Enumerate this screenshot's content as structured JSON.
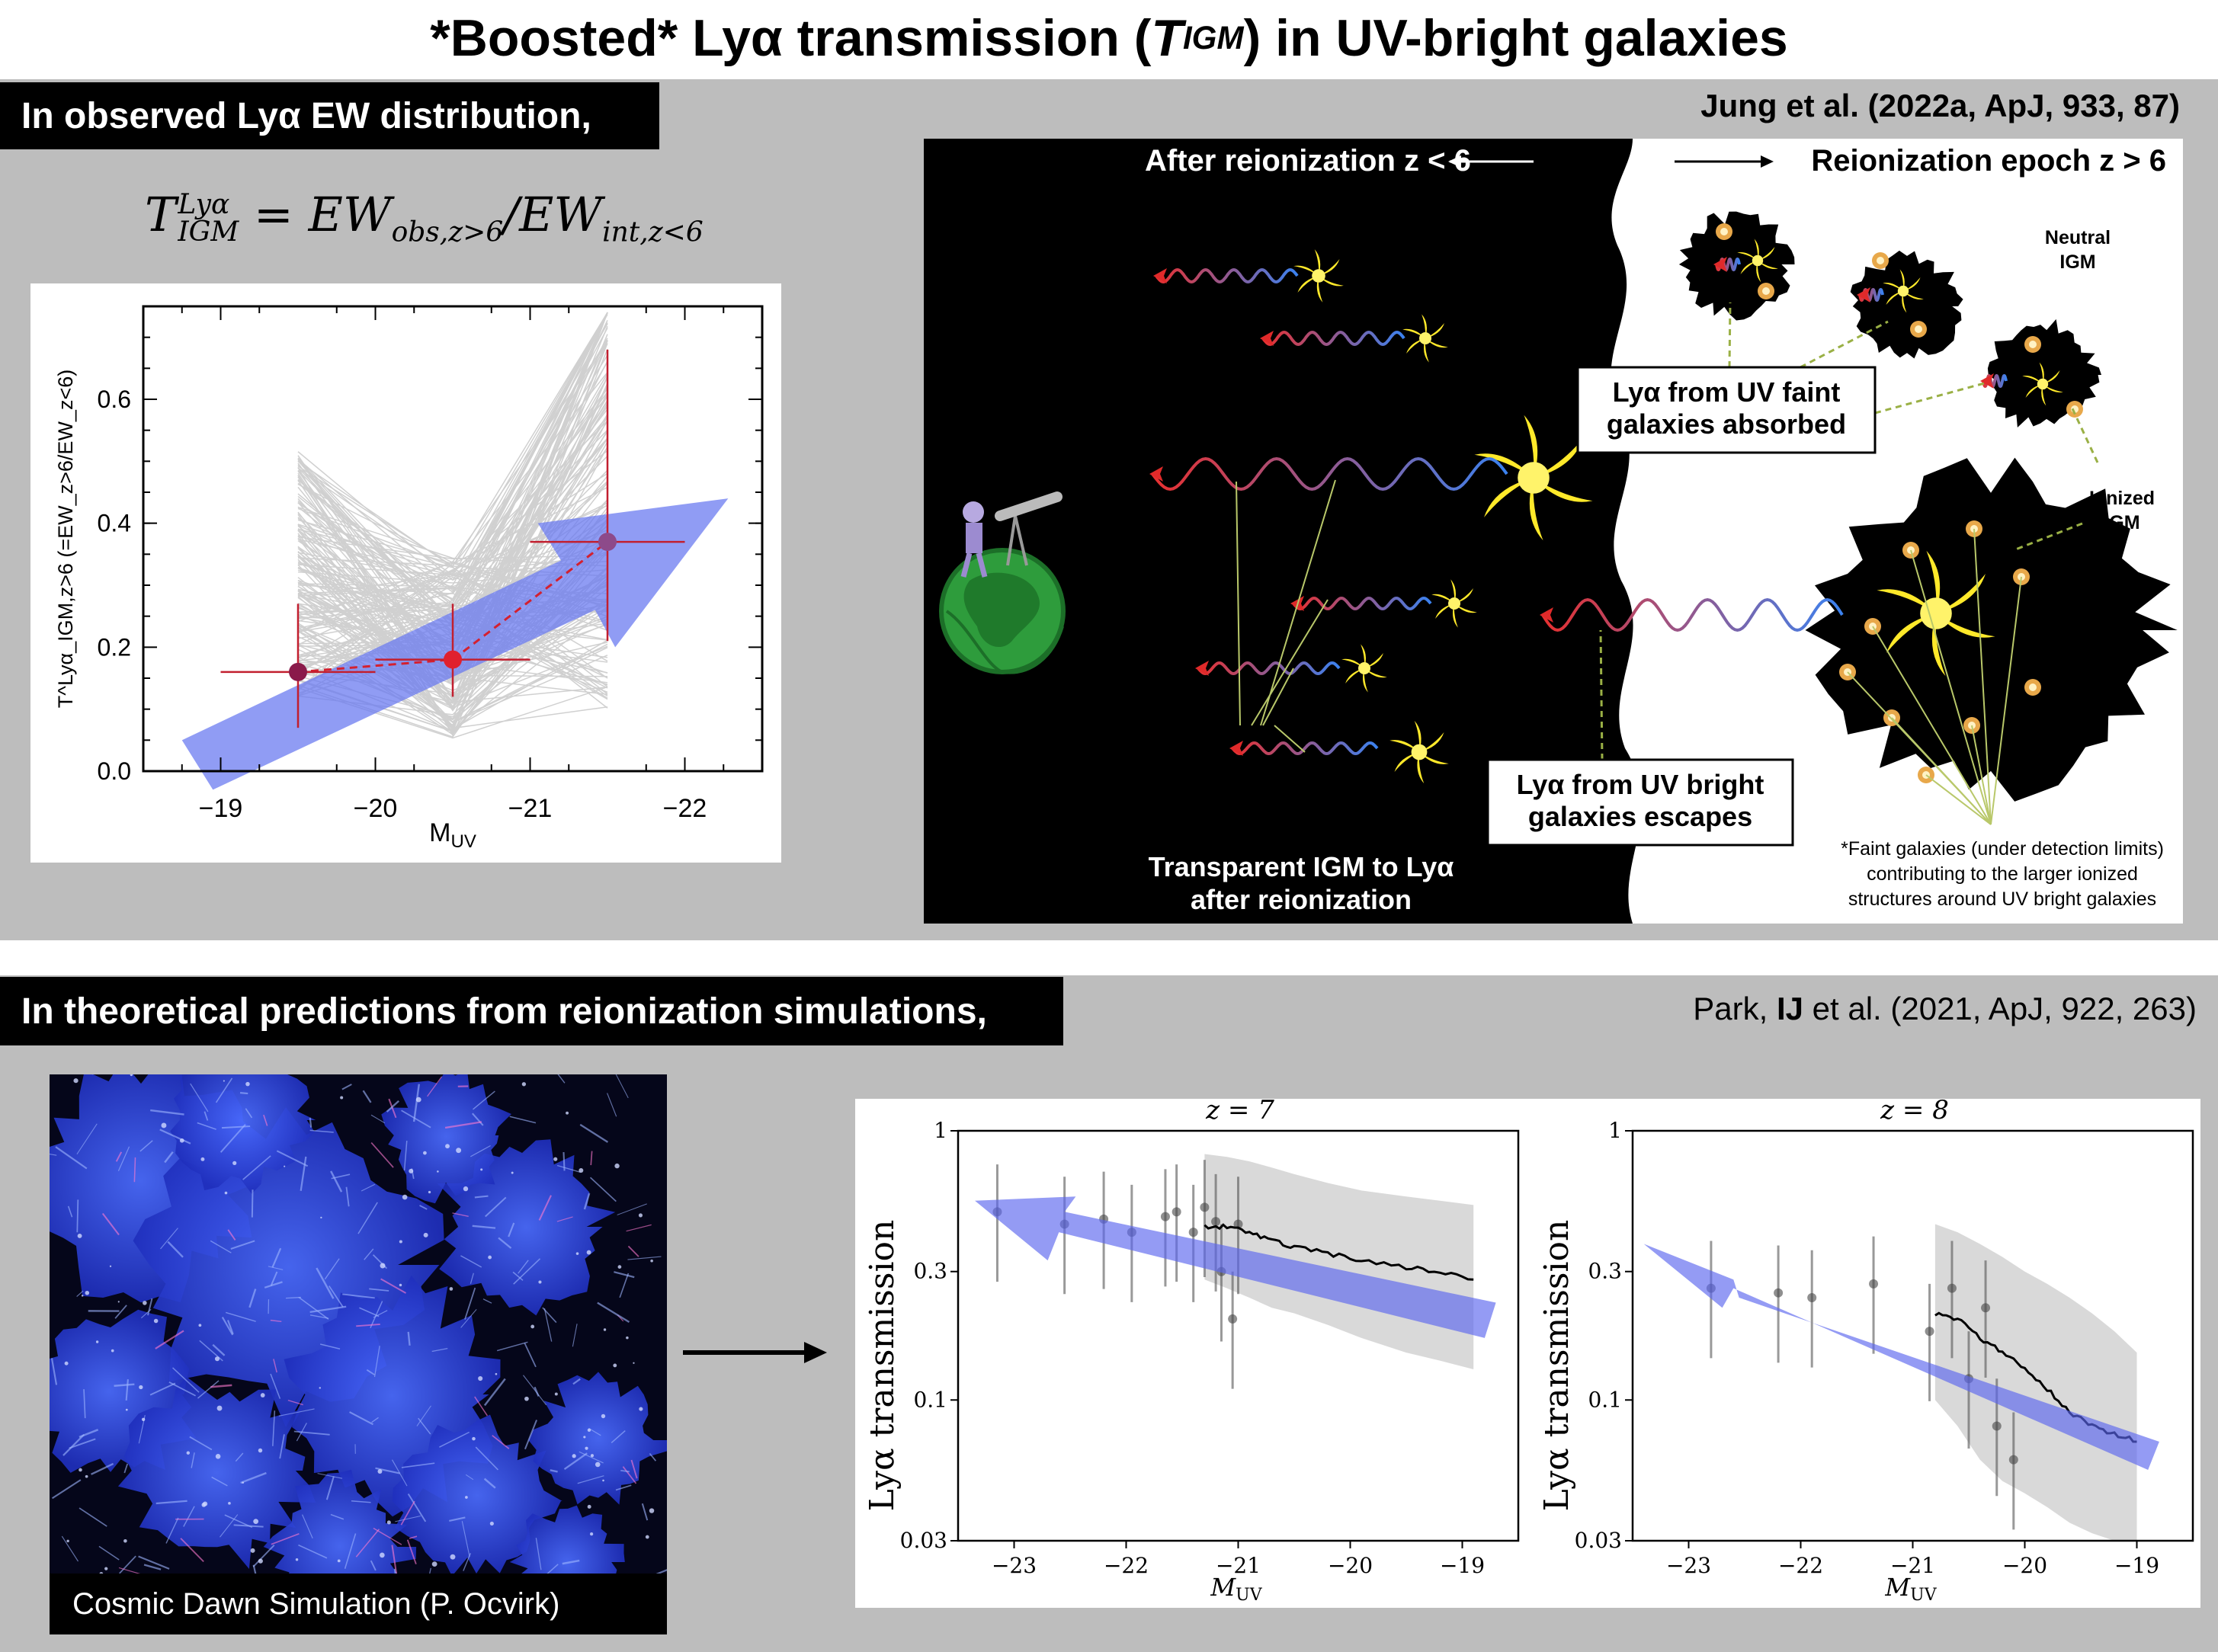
{
  "title": {
    "pre": "*Boosted* Lyα transmission (",
    "t": "T",
    "sub": "IGM",
    "post": ") in UV-bright galaxies"
  },
  "top_panel": {
    "tag": "In observed Lyα EW distribution,",
    "citation": "Jung et al. (2022a, ApJ, 933, 87)",
    "equation": {
      "T": "T",
      "sup": "Lyα",
      "sub": "IGM",
      "rhs1": " = EW",
      "sub1": "obs,z>6",
      "rhs2": "/EW",
      "sub2": "int,z<6"
    },
    "plot": {
      "xlabel_main": "M",
      "xlabel_sub": "UV",
      "ylabel": "T^Lyα_IGM,z>6 (=EW_z>6/EW_z<6)",
      "xticks": [
        "−19",
        "−20",
        "−21",
        "−22"
      ],
      "yticks": [
        "0.0",
        "0.2",
        "0.4",
        "0.6"
      ]
    },
    "cartoon": {
      "after_label": "After reionization z < 6",
      "epoch_label": "Reionization epoch z > 6",
      "neutral_label": [
        "Neutral",
        "IGM"
      ],
      "ionized_label": [
        "Ionized",
        "IGM"
      ],
      "faint_box": [
        "Lyα from UV faint",
        "galaxies absorbed"
      ],
      "bright_box": [
        "Lyα from UV bright",
        "galaxies escapes"
      ],
      "transparent_label": [
        "Transparent IGM to Lyα",
        "after reionization"
      ],
      "faint_note": [
        "*Faint galaxies (under detection limits)",
        "contributing to the larger ionized",
        "structures around UV bright galaxies"
      ]
    }
  },
  "bottom_panel": {
    "tag": "In theoretical predictions from reionization simulations,",
    "citation": {
      "pre": "Park, ",
      "bold": "IJ",
      "post": " et al. (2021, ApJ, 922, 263)"
    },
    "sim_caption": "Cosmic Dawn Simulation (P. Ocvirk)",
    "plot_left": {
      "title": "z = 7"
    },
    "plot_right": {
      "title": "z = 8"
    },
    "ylabel": "Lyα transmission",
    "xlabel_main": "M",
    "xlabel_sub": "UV",
    "xticks": [
      "−23",
      "−22",
      "−21",
      "−20",
      "−19"
    ],
    "yticks": [
      "0.03",
      "0.1",
      "0.3",
      "1"
    ]
  },
  "chart_data": [
    {
      "type": "scatter",
      "x": [
        -19.5,
        -20.5,
        -21.5
      ],
      "y": [
        0.16,
        0.18,
        0.37
      ],
      "y_err_low": [
        0.09,
        0.06,
        0.16
      ],
      "y_err_high": [
        0.11,
        0.09,
        0.31
      ],
      "x_err": [
        0.5,
        0.5,
        0.5
      ],
      "xlim": [
        -18.5,
        -22.5
      ],
      "ylim": [
        0.0,
        0.75
      ]
    },
    {
      "type": "line",
      "panel": "z = 7",
      "x": [
        -21.3,
        -21.1,
        -20.9,
        -20.7,
        -20.5,
        -20.2,
        -19.9,
        -19.5,
        -19.2,
        -18.9
      ],
      "y": [
        0.44,
        0.44,
        0.42,
        0.39,
        0.37,
        0.35,
        0.33,
        0.31,
        0.3,
        0.28
      ],
      "band_low": [
        0.28,
        0.26,
        0.24,
        0.22,
        0.21,
        0.19,
        0.17,
        0.15,
        0.14,
        0.13
      ],
      "band_high": [
        0.82,
        0.8,
        0.77,
        0.73,
        0.69,
        0.64,
        0.6,
        0.57,
        0.55,
        0.53
      ],
      "obs_x": [
        -23.15,
        -22.55,
        -22.2,
        -21.95,
        -21.65,
        -21.55,
        -21.4,
        -21.3,
        -21.2,
        -21.15,
        -21.05,
        -21.0
      ],
      "obs_y": [
        0.5,
        0.45,
        0.47,
        0.42,
        0.48,
        0.5,
        0.42,
        0.52,
        0.46,
        0.3,
        0.2,
        0.45
      ],
      "xlim": [
        -23.5,
        -18.5
      ],
      "ylim": [
        0.03,
        1
      ],
      "yscale": "log"
    },
    {
      "type": "line",
      "panel": "z = 8",
      "x": [
        -20.8,
        -20.6,
        -20.4,
        -20.2,
        -20.0,
        -19.8,
        -19.6,
        -19.4,
        -19.2,
        -19.0
      ],
      "y": [
        0.21,
        0.2,
        0.17,
        0.15,
        0.13,
        0.11,
        0.09,
        0.08,
        0.075,
        0.07
      ],
      "band_low": [
        0.1,
        0.08,
        0.06,
        0.05,
        0.045,
        0.04,
        0.035,
        0.032,
        0.03,
        0.03
      ],
      "band_high": [
        0.45,
        0.42,
        0.38,
        0.34,
        0.3,
        0.27,
        0.24,
        0.21,
        0.18,
        0.15
      ],
      "obs_x": [
        -22.8,
        -22.2,
        -21.9,
        -21.35,
        -20.85,
        -20.65,
        -20.5,
        -20.35,
        -20.25,
        -20.1
      ],
      "obs_y": [
        0.26,
        0.25,
        0.24,
        0.27,
        0.18,
        0.26,
        0.12,
        0.22,
        0.08,
        0.06
      ],
      "xlim": [
        -23.5,
        -18.5
      ],
      "ylim": [
        0.03,
        1
      ],
      "yscale": "log"
    }
  ]
}
